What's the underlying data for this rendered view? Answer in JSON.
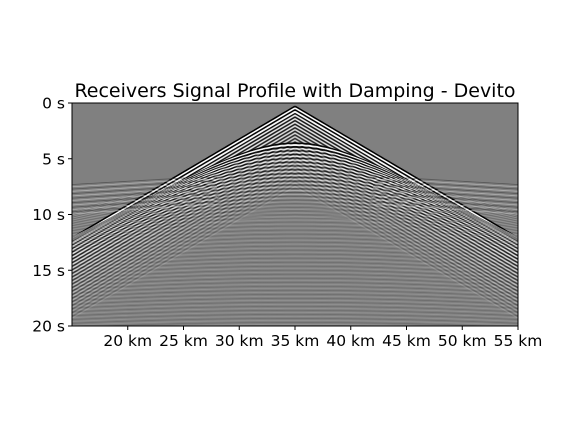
{
  "chart_data": {
    "type": "heatmap",
    "title": "Receivers Signal Profile with Damping - Devito",
    "xlabel": "",
    "ylabel": "",
    "x_ticks": [
      {
        "value": 20,
        "label": "20 km"
      },
      {
        "value": 25,
        "label": "25 km"
      },
      {
        "value": 30,
        "label": "30 km"
      },
      {
        "value": 35,
        "label": "35 km"
      },
      {
        "value": 40,
        "label": "40 km"
      },
      {
        "value": 45,
        "label": "45 km"
      },
      {
        "value": 50,
        "label": "50 km"
      },
      {
        "value": 55,
        "label": "55 km"
      }
    ],
    "y_ticks": [
      {
        "value": 0,
        "label": "0 s"
      },
      {
        "value": 5,
        "label": "5 s"
      },
      {
        "value": 10,
        "label": "10 s"
      },
      {
        "value": 15,
        "label": "15 s"
      },
      {
        "value": 20,
        "label": "20 s"
      }
    ],
    "xlim": [
      15,
      55
    ],
    "ylim": [
      0,
      20
    ],
    "y_inverted": true,
    "colormap": "grayscale",
    "background_color": "#808080",
    "source_x": 35,
    "wavefronts": [
      {
        "kind": "direct",
        "apex_time": 0.3,
        "slope": 0.59
      },
      {
        "kind": "reflection",
        "apex_time": 3.6,
        "velocity": 1.7
      }
    ],
    "grid": false,
    "legend": "none"
  }
}
